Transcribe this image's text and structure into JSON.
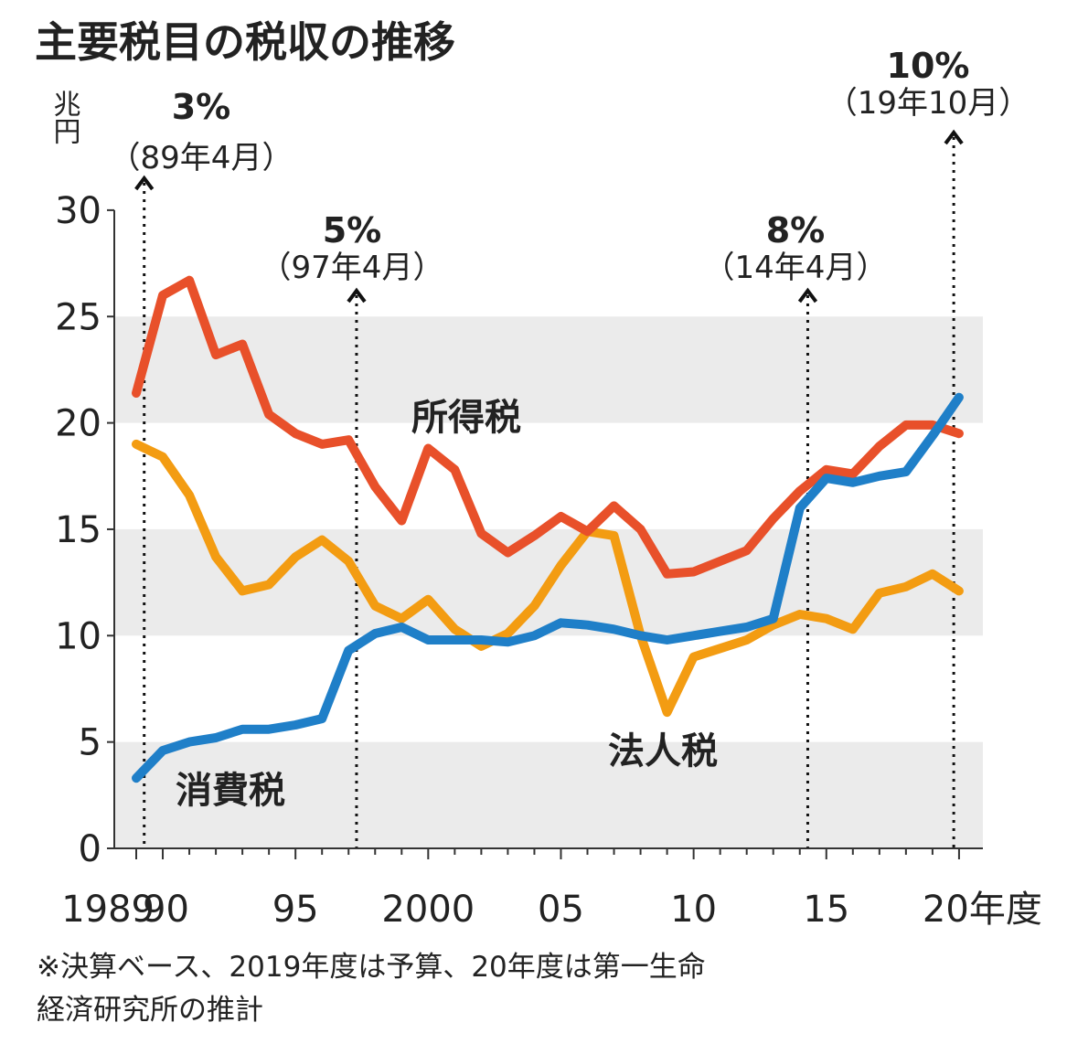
{
  "chart_data": {
    "type": "line",
    "title": "主要税目の税収の推移",
    "ylabel": "兆円",
    "xlabel": "年度",
    "ylim": [
      0,
      30
    ],
    "yticks": [
      "0",
      "5",
      "10",
      "15",
      "20",
      "25",
      "30"
    ],
    "xtick_labels": [
      {
        "year": 1989,
        "label": "1989"
      },
      {
        "year": 1990,
        "label": "90"
      },
      {
        "year": 1995,
        "label": "95"
      },
      {
        "year": 2000,
        "label": "2000"
      },
      {
        "year": 2005,
        "label": "05"
      },
      {
        "year": 2010,
        "label": "10"
      },
      {
        "year": 2015,
        "label": "15"
      },
      {
        "year": 2020,
        "label": "20年度"
      }
    ],
    "grid": "alternating horizontal bands (0-5, 10-15, 20-25 shaded)",
    "x": [
      1989,
      1990,
      1991,
      1992,
      1993,
      1994,
      1995,
      1996,
      1997,
      1998,
      1999,
      2000,
      2001,
      2002,
      2003,
      2004,
      2005,
      2006,
      2007,
      2008,
      2009,
      2010,
      2011,
      2012,
      2013,
      2014,
      2015,
      2016,
      2017,
      2018,
      2019,
      2020
    ],
    "series": [
      {
        "name": "所得税",
        "color": "#e8502a",
        "values": [
          21.4,
          26.0,
          26.7,
          23.2,
          23.7,
          20.4,
          19.5,
          19.0,
          19.2,
          17.0,
          15.4,
          18.8,
          17.8,
          14.8,
          13.9,
          14.7,
          15.6,
          14.9,
          16.1,
          15.0,
          12.9,
          13.0,
          13.5,
          14.0,
          15.5,
          16.8,
          17.8,
          17.6,
          18.9,
          19.9,
          19.9,
          19.5
        ]
      },
      {
        "name": "法人税",
        "color": "#f39c12",
        "values": [
          19.0,
          18.4,
          16.6,
          13.7,
          12.1,
          12.4,
          13.7,
          14.5,
          13.5,
          11.4,
          10.8,
          11.7,
          10.3,
          9.5,
          10.1,
          11.4,
          13.3,
          14.9,
          14.7,
          10.0,
          6.4,
          9.0,
          9.4,
          9.8,
          10.5,
          11.0,
          10.8,
          10.3,
          12.0,
          12.3,
          12.9,
          12.1
        ]
      },
      {
        "name": "消費税",
        "color": "#1f7fc8",
        "values": [
          3.3,
          4.6,
          5.0,
          5.2,
          5.6,
          5.6,
          5.8,
          6.1,
          9.3,
          10.1,
          10.4,
          9.8,
          9.8,
          9.8,
          9.7,
          10.0,
          10.6,
          10.5,
          10.3,
          10.0,
          9.8,
          10.0,
          10.2,
          10.4,
          10.8,
          16.0,
          17.4,
          17.2,
          17.5,
          17.7,
          19.4,
          21.2
        ]
      }
    ],
    "annotations": [
      {
        "year": 1989.3,
        "rate": "3%",
        "date": "（89年4月）"
      },
      {
        "year": 1997.3,
        "rate": "5%",
        "date": "（97年4月）"
      },
      {
        "year": 2014.3,
        "rate": "8%",
        "date": "（14年4月）"
      },
      {
        "year": 2019.8,
        "rate": "10%",
        "date": "（19年10月）"
      }
    ],
    "footnote": [
      "※決算ベース、2019年度は予算、20年度は第一生命",
      "経済研究所の推計"
    ]
  }
}
